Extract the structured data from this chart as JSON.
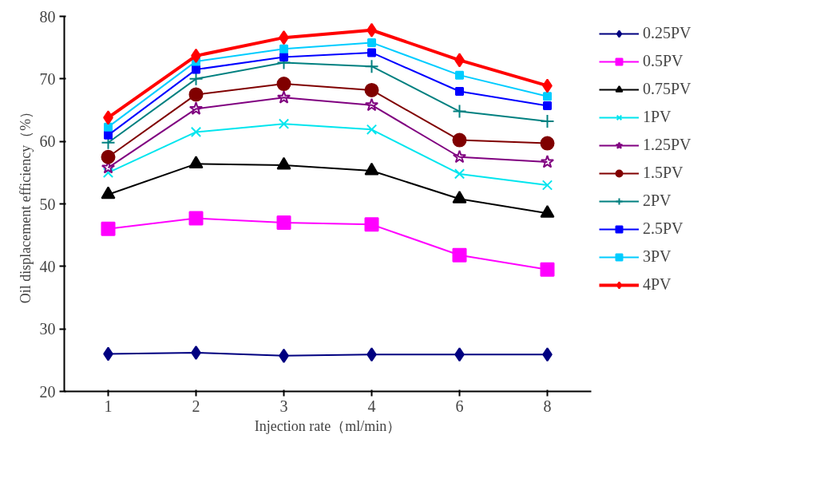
{
  "chart_data": {
    "type": "line",
    "xlabel": "Injection rate（ml/min）",
    "ylabel": "Oil displacement efficiency（%）",
    "categories": [
      "1",
      "2",
      "3",
      "4",
      "6",
      "8"
    ],
    "ylim": [
      20,
      80
    ],
    "yticks": [
      20,
      30,
      40,
      50,
      60,
      70,
      80
    ],
    "grid": false,
    "legend": "right",
    "series": [
      {
        "name": "0.25PV",
        "color": "#000080",
        "marker": "diamond",
        "values": [
          26.0,
          26.2,
          25.7,
          25.9,
          25.9,
          25.9
        ]
      },
      {
        "name": "0.5PV",
        "color": "#ff00ff",
        "marker": "square",
        "values": [
          46.0,
          47.7,
          47.0,
          46.7,
          41.8,
          39.5
        ]
      },
      {
        "name": "0.75PV",
        "color": "#000000",
        "marker": "triangle",
        "values": [
          51.5,
          56.4,
          56.2,
          55.3,
          50.8,
          48.5
        ]
      },
      {
        "name": "1PV",
        "color": "#00e5ee",
        "marker": "x",
        "values": [
          55.0,
          61.5,
          62.8,
          61.9,
          54.8,
          53.0
        ]
      },
      {
        "name": "1.25PV",
        "color": "#800080",
        "marker": "star",
        "values": [
          55.8,
          65.2,
          67.0,
          65.8,
          57.5,
          56.7
        ]
      },
      {
        "name": "1.5PV",
        "color": "#800000",
        "marker": "circle",
        "values": [
          57.5,
          67.5,
          69.2,
          68.2,
          60.2,
          59.7
        ]
      },
      {
        "name": "2PV",
        "color": "#008080",
        "marker": "cross",
        "values": [
          59.8,
          70.0,
          72.6,
          72.0,
          64.8,
          63.2
        ]
      },
      {
        "name": "2.5PV",
        "color": "#0000ff",
        "marker": "square",
        "values": [
          61.0,
          71.5,
          73.5,
          74.2,
          68.0,
          65.7
        ]
      },
      {
        "name": "3PV",
        "color": "#00ccff",
        "marker": "square",
        "values": [
          62.3,
          72.8,
          74.8,
          75.8,
          70.6,
          67.2
        ]
      },
      {
        "name": "4PV",
        "color": "#ff0000",
        "marker": "diamond",
        "values": [
          63.8,
          73.7,
          76.6,
          77.8,
          73.0,
          68.9
        ]
      }
    ]
  }
}
